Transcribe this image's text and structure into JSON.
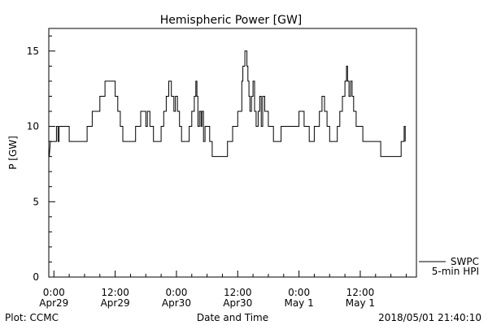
{
  "chart_data": {
    "type": "line",
    "title": "Hemispheric Power [GW]",
    "xlabel": "Date and Time",
    "ylabel": "P [GW]",
    "ylim": [
      0,
      16.5
    ],
    "xlim_hours": [
      -1,
      71
    ],
    "grid": false,
    "y_ticks": [
      {
        "value": 0,
        "label": "0"
      },
      {
        "value": 5,
        "label": "5"
      },
      {
        "value": 10,
        "label": "10"
      },
      {
        "value": 15,
        "label": "15"
      }
    ],
    "x_ticks": [
      {
        "hour": 0,
        "label1": "0:00",
        "label2": "Apr29"
      },
      {
        "hour": 12,
        "label1": "12:00",
        "label2": "Apr29"
      },
      {
        "hour": 24,
        "label1": "0:00",
        "label2": "Apr30"
      },
      {
        "hour": 36,
        "label1": "12:00",
        "label2": "Apr30"
      },
      {
        "hour": 48,
        "label1": "0:00",
        "label2": "May 1"
      },
      {
        "hour": 60,
        "label1": "12:00",
        "label2": "May 1"
      }
    ],
    "series": [
      {
        "name": "SWPC",
        "legend_subtitle": "5-min HPI",
        "points": [
          [
            -0.9,
            8
          ],
          [
            -0.7,
            9
          ],
          [
            0.5,
            9
          ],
          [
            0.5,
            10
          ],
          [
            0.8,
            10
          ],
          [
            0.8,
            9
          ],
          [
            1.0,
            9
          ],
          [
            1.0,
            10
          ],
          [
            3.0,
            10
          ],
          [
            3.0,
            9
          ],
          [
            6.5,
            9
          ],
          [
            6.5,
            10
          ],
          [
            7.5,
            10
          ],
          [
            7.5,
            11
          ],
          [
            9.0,
            11
          ],
          [
            9.0,
            12
          ],
          [
            10.0,
            12
          ],
          [
            10.0,
            13
          ],
          [
            12.0,
            13
          ],
          [
            12.0,
            12
          ],
          [
            12.5,
            12
          ],
          [
            12.5,
            11
          ],
          [
            13.0,
            11
          ],
          [
            13.0,
            10
          ],
          [
            13.5,
            10
          ],
          [
            13.5,
            9
          ],
          [
            16.0,
            9
          ],
          [
            16.0,
            10
          ],
          [
            17.0,
            10
          ],
          [
            17.0,
            11
          ],
          [
            18.0,
            11
          ],
          [
            18.0,
            10
          ],
          [
            18.3,
            10
          ],
          [
            18.3,
            11
          ],
          [
            18.8,
            11
          ],
          [
            18.8,
            10
          ],
          [
            19.5,
            10
          ],
          [
            19.5,
            9
          ],
          [
            21.0,
            9
          ],
          [
            21.0,
            10
          ],
          [
            21.5,
            10
          ],
          [
            21.5,
            11
          ],
          [
            22.0,
            11
          ],
          [
            22.0,
            12
          ],
          [
            22.5,
            12
          ],
          [
            22.5,
            13
          ],
          [
            23.0,
            13
          ],
          [
            23.0,
            12
          ],
          [
            23.5,
            12
          ],
          [
            23.5,
            11
          ],
          [
            23.8,
            11
          ],
          [
            23.8,
            12
          ],
          [
            24.2,
            12
          ],
          [
            24.2,
            11
          ],
          [
            24.6,
            11
          ],
          [
            24.6,
            10
          ],
          [
            25.0,
            10
          ],
          [
            25.0,
            9
          ],
          [
            26.5,
            9
          ],
          [
            26.5,
            10
          ],
          [
            27.0,
            10
          ],
          [
            27.0,
            11
          ],
          [
            27.5,
            11
          ],
          [
            27.5,
            12
          ],
          [
            27.8,
            12
          ],
          [
            27.8,
            13
          ],
          [
            28.0,
            13
          ],
          [
            28.0,
            12
          ],
          [
            28.2,
            12
          ],
          [
            28.2,
            10
          ],
          [
            28.5,
            10
          ],
          [
            28.5,
            11
          ],
          [
            28.8,
            11
          ],
          [
            28.8,
            10
          ],
          [
            29.0,
            10
          ],
          [
            29.0,
            11
          ],
          [
            29.3,
            11
          ],
          [
            29.3,
            9
          ],
          [
            29.6,
            9
          ],
          [
            29.6,
            10
          ],
          [
            30.5,
            10
          ],
          [
            30.5,
            9
          ],
          [
            31.0,
            9
          ],
          [
            31.0,
            8
          ],
          [
            34.0,
            8
          ],
          [
            34.0,
            9
          ],
          [
            35.0,
            9
          ],
          [
            35.0,
            10
          ],
          [
            36.0,
            10
          ],
          [
            36.0,
            11
          ],
          [
            36.8,
            11
          ],
          [
            36.8,
            13
          ],
          [
            37.0,
            13
          ],
          [
            37.0,
            14
          ],
          [
            37.4,
            14
          ],
          [
            37.4,
            15
          ],
          [
            37.8,
            15
          ],
          [
            37.8,
            14
          ],
          [
            38.0,
            14
          ],
          [
            38.0,
            13
          ],
          [
            38.2,
            13
          ],
          [
            38.2,
            12
          ],
          [
            38.4,
            12
          ],
          [
            38.4,
            11
          ],
          [
            38.7,
            11
          ],
          [
            38.7,
            12
          ],
          [
            39.0,
            12
          ],
          [
            39.0,
            13
          ],
          [
            39.3,
            13
          ],
          [
            39.3,
            11
          ],
          [
            39.6,
            11
          ],
          [
            39.6,
            10
          ],
          [
            40.0,
            10
          ],
          [
            40.0,
            11
          ],
          [
            40.3,
            11
          ],
          [
            40.3,
            12
          ],
          [
            40.6,
            12
          ],
          [
            40.6,
            10
          ],
          [
            40.9,
            10
          ],
          [
            40.9,
            12
          ],
          [
            41.3,
            12
          ],
          [
            41.3,
            11
          ],
          [
            42.0,
            11
          ],
          [
            42.0,
            10
          ],
          [
            43.0,
            10
          ],
          [
            43.0,
            9
          ],
          [
            44.5,
            9
          ],
          [
            44.5,
            10
          ],
          [
            48.0,
            10
          ],
          [
            48.0,
            11
          ],
          [
            49.0,
            11
          ],
          [
            49.0,
            10
          ],
          [
            50.0,
            10
          ],
          [
            50.0,
            9
          ],
          [
            51.0,
            9
          ],
          [
            51.0,
            10
          ],
          [
            52.0,
            10
          ],
          [
            52.0,
            11
          ],
          [
            52.5,
            11
          ],
          [
            52.5,
            12
          ],
          [
            53.0,
            12
          ],
          [
            53.0,
            11
          ],
          [
            53.5,
            11
          ],
          [
            53.5,
            10
          ],
          [
            54.0,
            10
          ],
          [
            54.0,
            9
          ],
          [
            55.5,
            9
          ],
          [
            55.5,
            10
          ],
          [
            56.0,
            10
          ],
          [
            56.0,
            11
          ],
          [
            56.5,
            11
          ],
          [
            56.5,
            12
          ],
          [
            57.0,
            12
          ],
          [
            57.0,
            13
          ],
          [
            57.3,
            13
          ],
          [
            57.3,
            14
          ],
          [
            57.5,
            14
          ],
          [
            57.5,
            13
          ],
          [
            57.8,
            13
          ],
          [
            57.8,
            12
          ],
          [
            58.1,
            12
          ],
          [
            58.1,
            13
          ],
          [
            58.4,
            13
          ],
          [
            58.4,
            12
          ],
          [
            58.7,
            12
          ],
          [
            58.7,
            11
          ],
          [
            59.2,
            11
          ],
          [
            59.2,
            10
          ],
          [
            60.5,
            10
          ],
          [
            60.5,
            9
          ],
          [
            64.0,
            9
          ],
          [
            64.0,
            8
          ],
          [
            68.0,
            8
          ],
          [
            68.0,
            9
          ],
          [
            68.6,
            9
          ],
          [
            68.6,
            10
          ],
          [
            68.8,
            10
          ],
          [
            68.8,
            9
          ]
        ]
      }
    ],
    "footer": {
      "left": "Plot: CCMC",
      "right": "2018/05/01 21:40:10"
    }
  }
}
